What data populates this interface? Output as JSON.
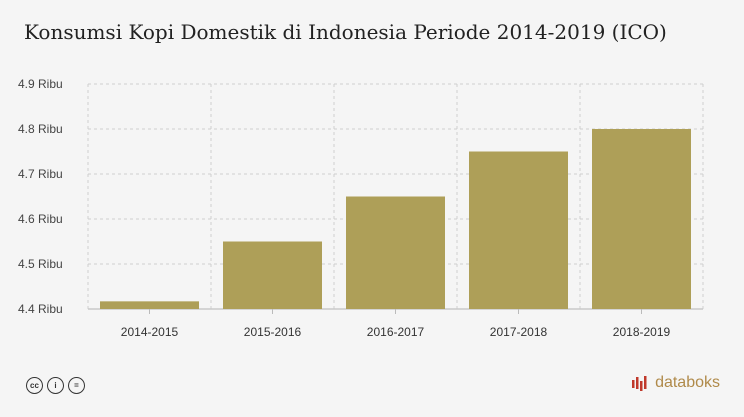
{
  "title": "Konsumsi Kopi Domestik di Indonesia Periode 2014-2019 (ICO)",
  "brand": {
    "name": "databoks",
    "color": "#b08a4a"
  },
  "icons": [
    "cc-icon",
    "person-icon",
    "equal-icon"
  ],
  "chart_data": {
    "type": "bar",
    "categories": [
      "2014-2015",
      "2015-2016",
      "2016-2017",
      "2017-2018",
      "2018-2019"
    ],
    "values": [
      4.417,
      4.55,
      4.65,
      4.75,
      4.8
    ],
    "ylim": [
      4.4,
      4.9
    ],
    "yticks": [
      4.4,
      4.5,
      4.6,
      4.7,
      4.8,
      4.9
    ],
    "ytick_labels": [
      "4.4 Ribu",
      "4.5 Ribu",
      "4.6 Ribu",
      "4.7 Ribu",
      "4.8 Ribu",
      "4.9 Ribu"
    ],
    "grid": true,
    "bar_color": "#ae9f58",
    "xlabel": "",
    "ylabel": ""
  }
}
